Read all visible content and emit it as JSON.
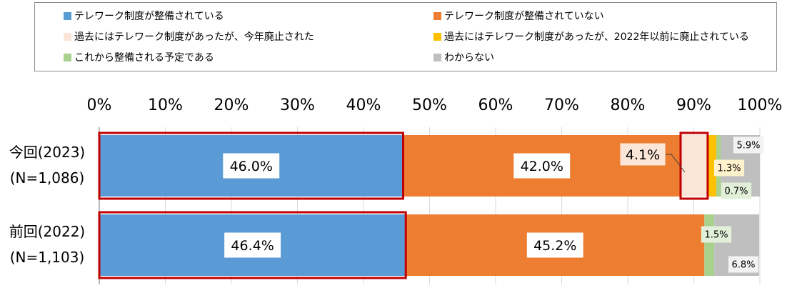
{
  "chart_data": {
    "type": "bar",
    "orientation": "horizontal",
    "stacked": true,
    "percent": true,
    "xlim": [
      0,
      100
    ],
    "x_ticks": [
      "0%",
      "10%",
      "20%",
      "30%",
      "40%",
      "50%",
      "60%",
      "70%",
      "80%",
      "90%",
      "100%"
    ],
    "categories": [
      {
        "line1": "今回(2023)",
        "line2": "(N=1,086)"
      },
      {
        "line1": "前回(2022)",
        "line2": "(N=1,103)"
      }
    ],
    "series": [
      {
        "name": "テレワーク制度が整備されている",
        "color": "#5b9bd5",
        "values": [
          46.0,
          46.4
        ],
        "labels": [
          "46.0%",
          "46.4%"
        ]
      },
      {
        "name": "テレワーク制度が整備されていない",
        "color": "#ed7d31",
        "values": [
          42.0,
          45.2
        ],
        "labels": [
          "42.0%",
          "45.2%"
        ]
      },
      {
        "name": "過去にはテレワーク制度があったが、今年廃止された",
        "color": "#fbe5d6",
        "values": [
          4.1,
          0
        ],
        "labels": [
          "4.1%",
          ""
        ]
      },
      {
        "name": "過去にはテレワーク制度があったが、2022年以前に廃止されている",
        "color": "#ffc000",
        "values": [
          1.3,
          0
        ],
        "labels": [
          "1.3%",
          ""
        ]
      },
      {
        "name": "これから整備される予定である",
        "color": "#a9d18e",
        "values": [
          0.7,
          1.5
        ],
        "labels": [
          "0.7%",
          "1.5%"
        ]
      },
      {
        "name": "わからない",
        "color": "#bfbfbf",
        "values": [
          5.9,
          6.8
        ],
        "labels": [
          "5.9%",
          "6.8%"
        ]
      }
    ],
    "highlight_color": "#c00000",
    "grid": true,
    "legend_position": "top"
  }
}
